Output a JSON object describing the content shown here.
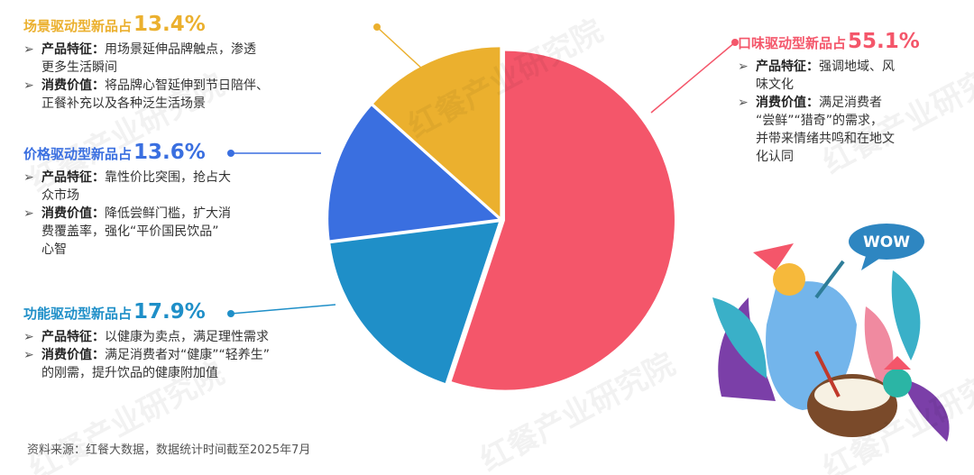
{
  "chart_data": {
    "type": "pie",
    "categories": [
      "口味驱动型新品占",
      "功能驱动型新品占",
      "价格驱动型新品占",
      "场景驱动型新品占"
    ],
    "values": [
      55.1,
      17.9,
      13.6,
      13.4
    ],
    "value_labels": [
      "55.1%",
      "17.9%",
      "13.6%",
      "13.4%"
    ],
    "colors": [
      "#f4566a",
      "#1f8fc8",
      "#3a6fe0",
      "#ebb02e"
    ],
    "details": [
      [
        {
          "label": "产品特征：",
          "lines": [
            "强调地域、风",
            "味文化"
          ]
        },
        {
          "label": "消费价值：",
          "lines": [
            "满足消费者",
            "“尝鲜”“猎奇”的需求，",
            "并带来情绪共鸣和在地文",
            "化认同"
          ]
        }
      ],
      [
        {
          "label": "产品特征：",
          "lines": [
            "以健康为卖点，满足理性需求"
          ]
        },
        {
          "label": "消费价值：",
          "lines": [
            "满足消费者对“健康”“轻养生”",
            "的刚需，提升饮品的健康附加值"
          ]
        }
      ],
      [
        {
          "label": "产品特征：",
          "lines": [
            "靠性价比突围，抢占大",
            "众市场"
          ]
        },
        {
          "label": "消费价值：",
          "lines": [
            "降低尝鲜门槛，扩大消",
            "费覆盖率，强化“平价国民饮品”",
            "心智"
          ]
        }
      ],
      [
        {
          "label": "产品特征：",
          "lines": [
            "用场景延伸品牌触点，渗透",
            "更多生活瞬间"
          ]
        },
        {
          "label": "消费价值：",
          "lines": [
            "将品牌心智延伸到节日陪伴、",
            "正餐补充以及各种泛生活场景"
          ]
        }
      ]
    ],
    "source": "资料来源：红餐大数据，数据统计时间截至2025年7月",
    "watermark": "红餐产业研究院",
    "illustration_text": "WOW"
  }
}
